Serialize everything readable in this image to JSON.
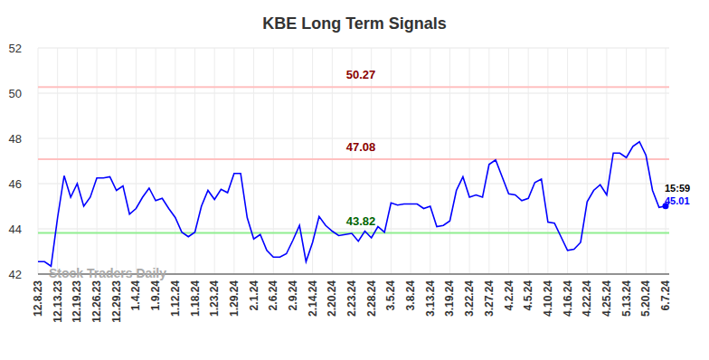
{
  "chart_data": {
    "type": "line",
    "title": "KBE Long Term Signals",
    "watermark": "Stock Traders Daily",
    "color": "#0000ff",
    "grid": true,
    "categories": [
      "12.8.23",
      null,
      null,
      "12.13.23",
      null,
      null,
      "12.19.23",
      null,
      null,
      "12.26.23",
      null,
      null,
      "12.29.23",
      null,
      null,
      "1.4.24",
      null,
      null,
      "1.9.24",
      null,
      null,
      "1.12.24",
      null,
      null,
      "1.18.24",
      null,
      null,
      "1.23.24",
      null,
      null,
      "1.29.24",
      null,
      null,
      "2.1.24",
      null,
      null,
      "2.6.24",
      null,
      null,
      "2.9.24",
      null,
      null,
      "2.14.24",
      null,
      null,
      "2.20.24",
      null,
      null,
      "2.23.24",
      null,
      null,
      "2.28.24",
      null,
      null,
      "3.5.24",
      null,
      null,
      "3.8.24",
      null,
      null,
      "3.13.24",
      null,
      null,
      "3.19.24",
      null,
      null,
      "3.22.24",
      null,
      null,
      "3.27.24",
      null,
      null,
      "4.2.24",
      null,
      null,
      "4.5.24",
      null,
      null,
      "4.10.24",
      null,
      null,
      "4.16.24",
      null,
      null,
      "4.22.24",
      null,
      null,
      "4.25.24",
      null,
      null,
      "5.13.24",
      null,
      null,
      "5.20.24",
      null,
      null,
      "6.7.24"
    ],
    "values": [
      42.55,
      42.55,
      42.35,
      44.5,
      46.35,
      45.4,
      46.0,
      45.0,
      45.4,
      46.25,
      46.25,
      46.3,
      45.7,
      45.9,
      44.65,
      44.9,
      45.4,
      45.8,
      45.25,
      45.35,
      44.9,
      44.5,
      43.85,
      43.65,
      43.85,
      45.0,
      45.7,
      45.3,
      45.75,
      45.6,
      46.45,
      46.45,
      44.5,
      43.55,
      43.75,
      43.05,
      42.75,
      42.75,
      42.9,
      43.5,
      44.15,
      42.55,
      43.4,
      44.55,
      44.15,
      43.9,
      43.7,
      43.75,
      43.8,
      43.45,
      43.9,
      43.6,
      44.1,
      43.85,
      45.15,
      45.05,
      45.1,
      45.1,
      45.1,
      44.9,
      45.0,
      44.1,
      44.15,
      44.35,
      45.7,
      46.3,
      45.4,
      45.5,
      45.4,
      46.85,
      47.05,
      46.3,
      45.55,
      45.5,
      45.25,
      45.35,
      46.05,
      46.2,
      44.3,
      44.25,
      43.65,
      43.05,
      43.1,
      43.4,
      45.2,
      45.7,
      45.95,
      45.5,
      47.35,
      47.35,
      47.15,
      47.65,
      47.85,
      47.25,
      45.7,
      44.95,
      45.01
    ],
    "ylim": [
      42,
      52
    ],
    "yticks": [
      42,
      44,
      46,
      48,
      50,
      52
    ],
    "reference_lines": [
      {
        "value": 50.27,
        "color": "#ffc0c0",
        "label_color": "#8b0000"
      },
      {
        "value": 47.08,
        "color": "#ffc0c0",
        "label_color": "#8b0000"
      },
      {
        "value": 43.82,
        "color": "#90ee90",
        "label_color": "#006400"
      }
    ],
    "last_label": {
      "time": "15:59"
    }
  }
}
